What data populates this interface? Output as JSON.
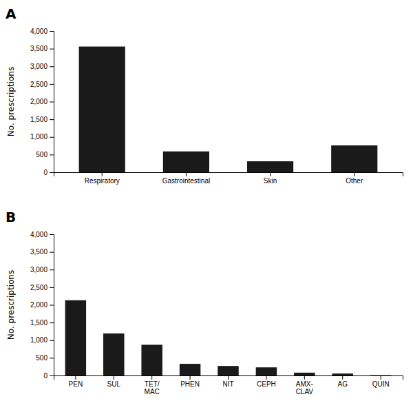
{
  "chart_data": [
    {
      "type": "bar",
      "title": "A",
      "categories": [
        "Respiratory",
        "Gastrointestinal",
        "Skin",
        "Other"
      ],
      "values": [
        3560,
        590,
        310,
        760
      ],
      "ylabel": "No. prescriptions",
      "color": "#1a1a1a",
      "ylim": [
        0,
        4000
      ],
      "yticks": [
        0,
        500,
        {
          "value": 1000,
          "label": "1,000"
        },
        {
          "value": 1500,
          "label": "1,500"
        },
        {
          "value": 2000,
          "label": "2,000"
        },
        {
          "value": 2500,
          "label": "2,500"
        },
        {
          "value": 3000,
          "label": "3,000"
        },
        {
          "value": 3500,
          "label": "3,500"
        },
        {
          "value": 4000,
          "label": "4,000"
        }
      ],
      "grid": false
    },
    {
      "type": "bar",
      "title": "B",
      "categories": [
        "PEN",
        "SUL",
        "TET/\nMAC",
        "PHEN",
        "NIT",
        "CEPH",
        "AMX-\nCLAV",
        "AG",
        "QUIN"
      ],
      "values": [
        2130,
        1190,
        870,
        330,
        270,
        230,
        80,
        55,
        10
      ],
      "ylabel": "No. prescriptions",
      "color": "#1a1a1a",
      "ylim": [
        0,
        4000
      ],
      "yticks": [
        0,
        500,
        {
          "value": 1000,
          "label": "1,000"
        },
        {
          "value": 1500,
          "label": "1,500"
        },
        {
          "value": 2000,
          "label": "2,000"
        },
        {
          "value": 2500,
          "label": "2,500"
        },
        {
          "value": 3000,
          "label": "3,000"
        },
        {
          "value": 3500,
          "label": "3,500"
        },
        {
          "value": 4000,
          "label": "4,000"
        }
      ],
      "grid": false
    }
  ]
}
